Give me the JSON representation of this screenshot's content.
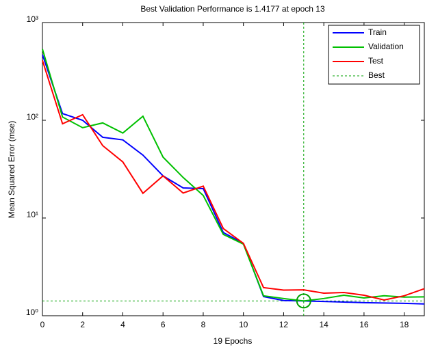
{
  "chart_data": {
    "type": "line",
    "title": "Best Validation Performance is 1.4177 at epoch 13",
    "x_label": "19 Epochs",
    "y_label": "Mean Squared Error  (mse)",
    "x": [
      0,
      1,
      2,
      3,
      4,
      5,
      6,
      7,
      8,
      9,
      10,
      11,
      12,
      13,
      14,
      15,
      16,
      17,
      18,
      19
    ],
    "series": [
      {
        "name": "Train",
        "color": "#0000ff",
        "values": [
          470,
          117,
          100,
          67,
          63,
          44,
          27,
          20.3,
          20,
          7.1,
          5.5,
          1.57,
          1.43,
          1.4177,
          1.4,
          1.38,
          1.36,
          1.35,
          1.34,
          1.32
        ]
      },
      {
        "name": "Validation",
        "color": "#00c000",
        "values": [
          535,
          108,
          84,
          94,
          74,
          110,
          42,
          26,
          17,
          6.8,
          5.4,
          1.6,
          1.5,
          1.4177,
          1.5,
          1.62,
          1.52,
          1.6,
          1.55,
          1.56
        ]
      },
      {
        "name": "Test",
        "color": "#ff0000",
        "values": [
          410,
          92,
          114,
          55,
          37.5,
          17.9,
          27,
          18,
          21.2,
          7.8,
          5.5,
          1.94,
          1.83,
          1.84,
          1.7,
          1.73,
          1.62,
          1.45,
          1.6,
          1.89
        ]
      }
    ],
    "best": {
      "name": "Best",
      "color": "#00a000",
      "x": 13,
      "y": 1.4177
    },
    "xlim": [
      0,
      19
    ],
    "xticks": [
      0,
      2,
      4,
      6,
      8,
      10,
      12,
      14,
      16,
      18
    ],
    "ylim": [
      1,
      1000
    ],
    "log_scale": true,
    "yticks": [
      {
        "value": 1,
        "label": "10⁰"
      },
      {
        "value": 10,
        "label": "10¹"
      },
      {
        "value": 100,
        "label": "10²"
      },
      {
        "value": 1000,
        "label": "10³"
      }
    ],
    "legend": "upper right"
  }
}
